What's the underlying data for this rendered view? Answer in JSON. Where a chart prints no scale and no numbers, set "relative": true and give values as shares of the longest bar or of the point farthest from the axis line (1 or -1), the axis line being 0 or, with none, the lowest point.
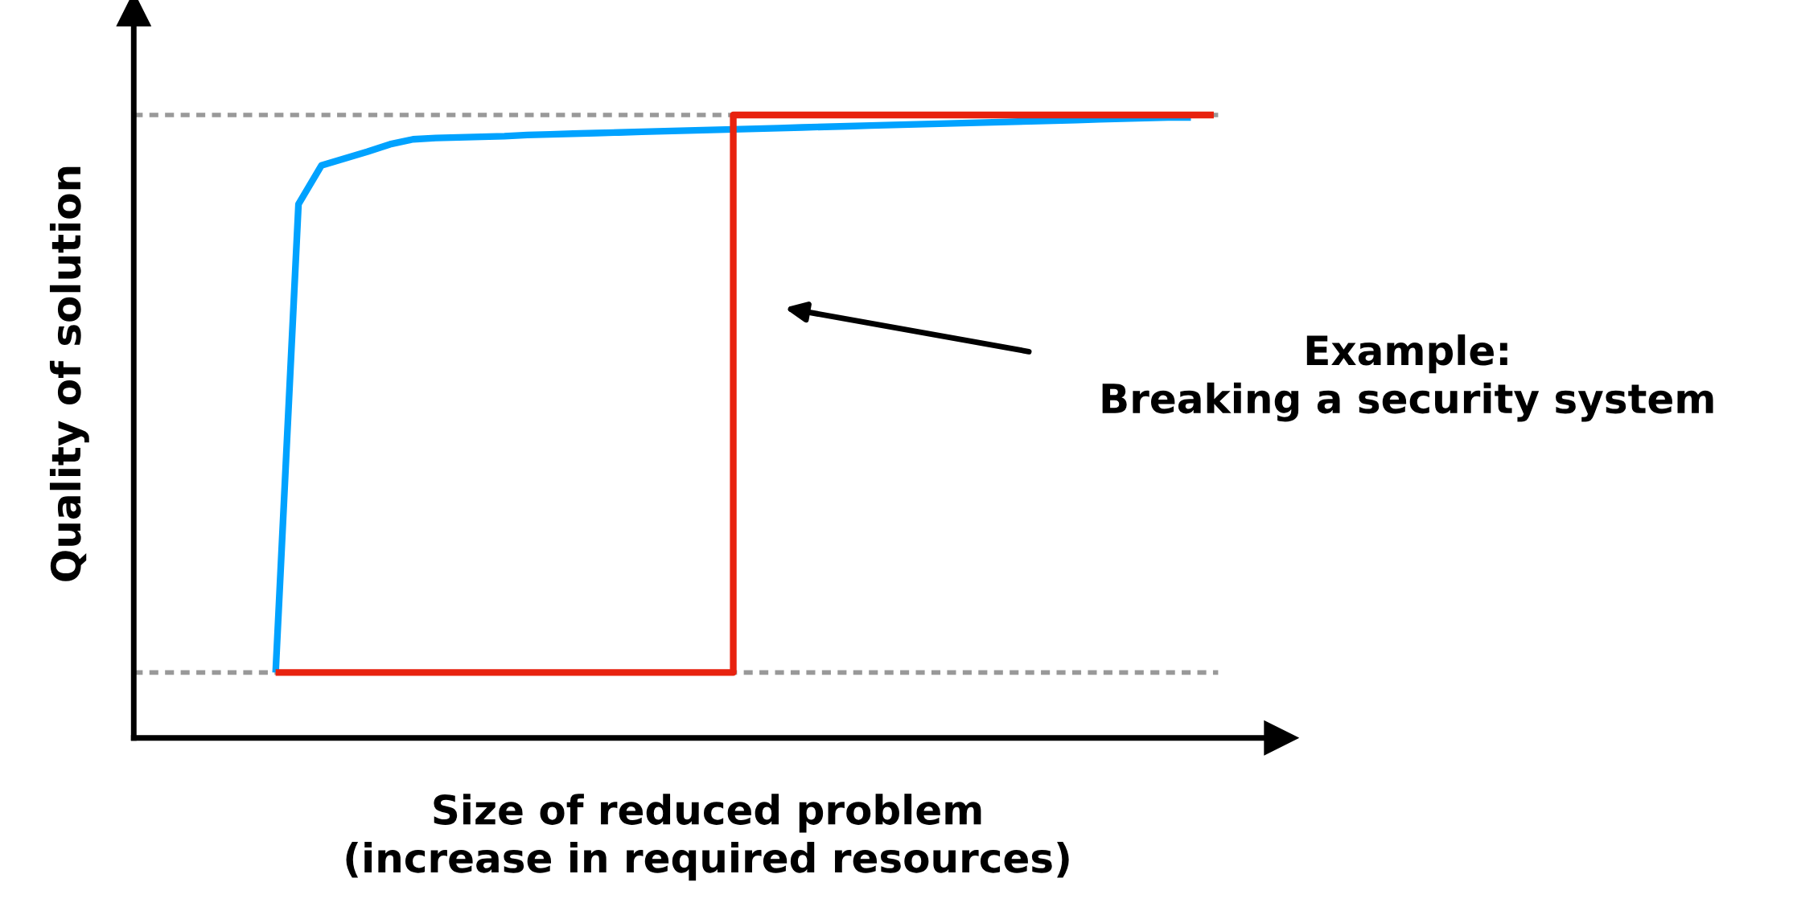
{
  "chart_data": {
    "type": "line",
    "relative": true,
    "xlabel": "Size of reduced problem\n(increase in required resources)",
    "ylabel": "Quality of solution",
    "categories": [
      null,
      null,
      null,
      null,
      null,
      null,
      null,
      null,
      null,
      null,
      null,
      null,
      null,
      null,
      null,
      null,
      null,
      null,
      null,
      null,
      null,
      null,
      null,
      null,
      null,
      null,
      null,
      null,
      null,
      null,
      null,
      null,
      null,
      null,
      null,
      null,
      null,
      null,
      null,
      null,
      null,
      null
    ],
    "series": [
      {
        "color": "#00a2ff",
        "values": [
          0.105,
          0.857,
          0.919,
          0.93,
          0.941,
          0.953,
          0.961,
          0.963,
          0.964,
          0.965,
          0.966,
          0.968,
          0.969,
          0.97,
          0.971,
          0.972,
          0.973,
          0.974,
          0.975,
          0.976,
          0.977,
          0.978,
          0.979,
          0.98,
          0.981,
          0.982,
          0.983,
          0.984,
          0.985,
          0.986,
          0.987,
          0.988,
          0.989,
          0.99,
          0.991,
          0.992,
          0.993,
          0.994,
          0.995,
          0.996,
          0.996,
          null
        ]
      },
      {
        "type": "step",
        "color": "#e8220f",
        "values": [
          0.105,
          0.105,
          0.105,
          0.105,
          0.105,
          0.105,
          0.105,
          0.105,
          0.105,
          0.105,
          0.105,
          0.105,
          0.105,
          0.105,
          0.105,
          0.105,
          0.105,
          0.105,
          0.105,
          0.105,
          1,
          1,
          1,
          1,
          1,
          1,
          1,
          1,
          1,
          1,
          1,
          1,
          1,
          1,
          1,
          1,
          1,
          1,
          1,
          1,
          1,
          1
        ]
      }
    ],
    "ref_lines": [
      {
        "axis": "y",
        "value": 0.105,
        "color": "#999999",
        "line_style": "dashed"
      },
      {
        "axis": "y",
        "value": 1,
        "color": "#999999",
        "line_style": "dashed"
      }
    ],
    "annotations": [
      "Example:\nBreaking a security system"
    ]
  }
}
